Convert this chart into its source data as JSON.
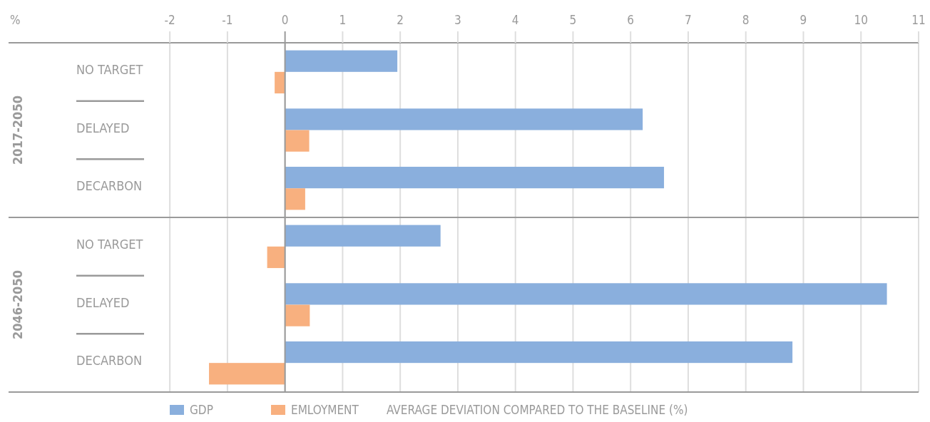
{
  "chart_data": [
    {
      "type": "bar",
      "orientation": "horizontal",
      "xlabel": "%",
      "ylabel": "2017-2050",
      "categories": [
        "NO TARGET",
        "DELAYED",
        "DECARBON"
      ],
      "series": [
        {
          "color": "#8aafdd",
          "values": [
            1.95,
            6.21,
            6.58
          ]
        },
        {
          "color": "#f8b07f",
          "values": [
            -0.18,
            0.42,
            0.35
          ]
        }
      ],
      "xlim": [
        -4.8,
        11
      ],
      "xticks": [
        -2,
        -1,
        0,
        1,
        2,
        3,
        4,
        5,
        6,
        7,
        8,
        9,
        10,
        11
      ],
      "grid": "x",
      "legend": false
    },
    {
      "type": "bar",
      "orientation": "horizontal",
      "xlabel": "AVERAGE DEVIATION  COMPARED TO THE BASELINE (%)",
      "ylabel": "2046-2050",
      "categories": [
        "NO TARGET",
        "DELAYED",
        "DECARBON"
      ],
      "series": [
        {
          "name": "GDP",
          "color": "#8aafdd",
          "values": [
            2.7,
            10.45,
            8.81
          ]
        },
        {
          "name": "EMLOYMENT",
          "color": "#f8b07f",
          "values": [
            -0.31,
            0.43,
            -1.32
          ]
        }
      ],
      "xlim": [
        -4.8,
        11
      ],
      "xticks": [
        -2,
        -1,
        0,
        1,
        2,
        3,
        4,
        5,
        6,
        7,
        8,
        9,
        10,
        11
      ],
      "grid": "x",
      "legend": "bottom",
      "tick_labels": "y"
    }
  ]
}
